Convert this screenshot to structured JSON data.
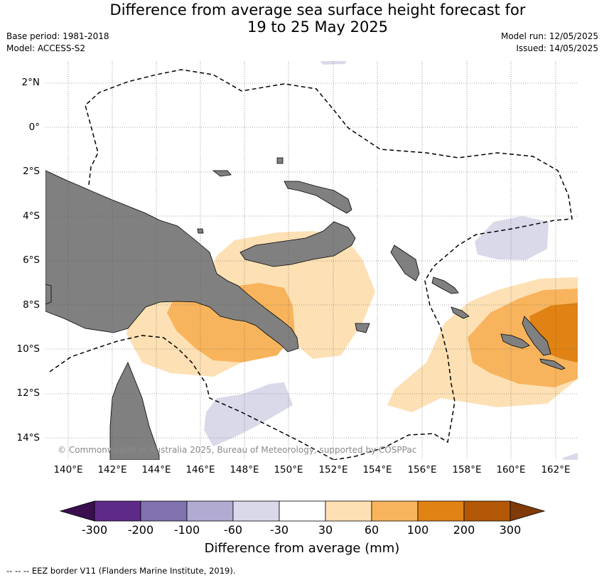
{
  "title_line1": "Difference from average sea surface height forecast for",
  "title_line2": "19 to 25 May 2025",
  "meta_left": {
    "base_period": "Base period: 1981-2018",
    "model": "Model: ACCESS-S2"
  },
  "meta_right": {
    "model_run": "Model run: 12/05/2025",
    "issued": "Issued: 14/05/2025"
  },
  "lat_labels": [
    "2°N",
    "0°",
    "2°S",
    "4°S",
    "6°S",
    "8°S",
    "10°S",
    "12°S",
    "14°S"
  ],
  "lon_labels": [
    "140°E",
    "142°E",
    "144°E",
    "146°E",
    "148°E",
    "150°E",
    "152°E",
    "154°E",
    "156°E",
    "158°E",
    "160°E",
    "162°E"
  ],
  "copyright": "© Commonwealth of Australia 2025, Bureau of Meteorology, supported by COSPPac",
  "colorbar": {
    "ticks": [
      "-300",
      "-200",
      "-100",
      "-60",
      "-30",
      "30",
      "60",
      "100",
      "200",
      "300"
    ],
    "colors": [
      "#3b0f4f",
      "#5e2a8a",
      "#8072ad",
      "#b1abd2",
      "#d9d9ea",
      "#ffffff",
      "#fde0b4",
      "#f8b45c",
      "#e08214",
      "#b35806",
      "#7f3b08"
    ],
    "label": "Difference from average (mm)"
  },
  "footnote": "--  --  -- EEZ border V11 (Flanders Marine Institute, 2019)."
}
